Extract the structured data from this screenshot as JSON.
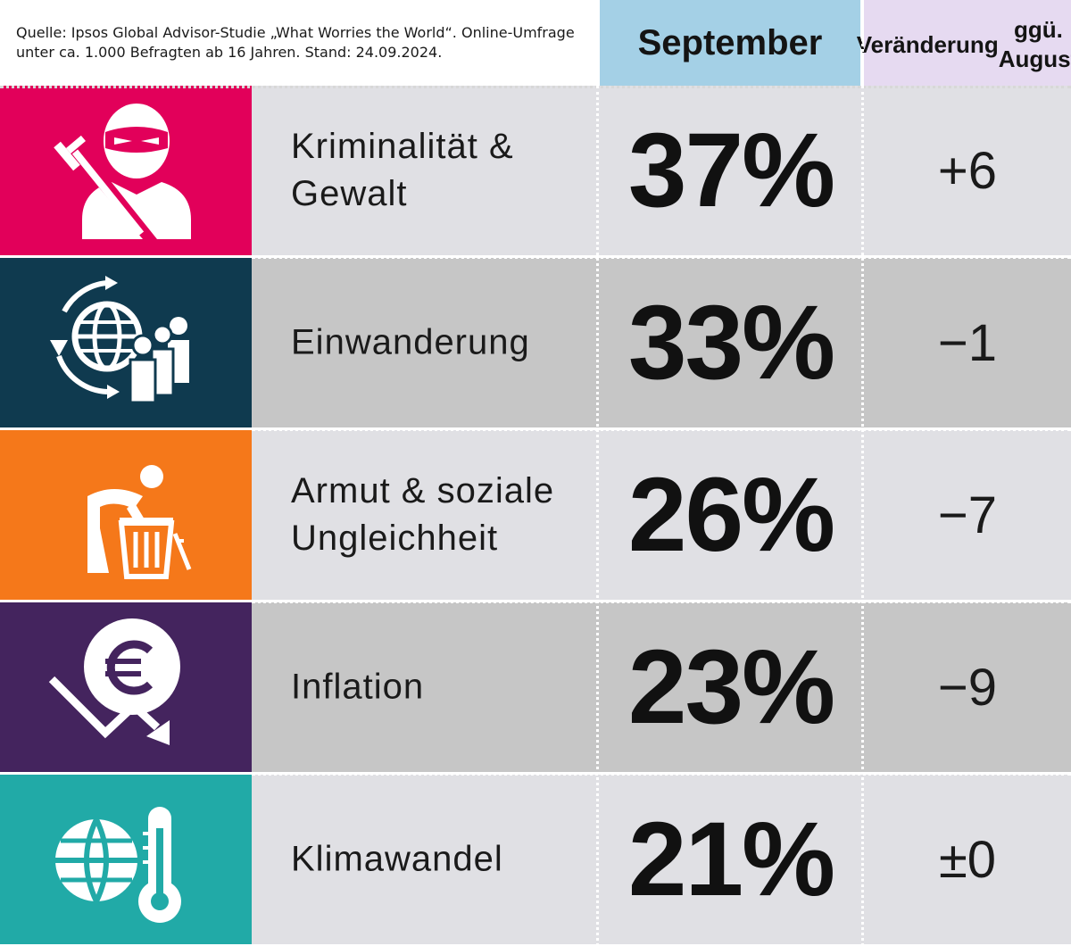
{
  "source": "Quelle: Ipsos Global Advisor-Studie „What Worries the World“. Online-Umfrage unter ca. 1.000 Befragten ab 16 Jahren. Stand: 24.09.2024.",
  "headers": {
    "september": "September",
    "change_line1": "Veränderung",
    "change_line2": "ggü. August"
  },
  "colors": {
    "header_september_bg": "#a4d0e6",
    "header_change_bg": "#e6daf1",
    "row_light": "#e0e0e4",
    "row_dark": "#c6c6c6"
  },
  "rows": [
    {
      "label": "Kriminalität &\nGewalt",
      "value": "37%",
      "change": "+6",
      "icon": "masked-criminal-icon",
      "color": "#e2005a"
    },
    {
      "label": "Einwanderung",
      "value": "33%",
      "change": "−1",
      "icon": "globe-migration-icon",
      "color": "#0f3a4f"
    },
    {
      "label": "Armut & soziale\nUngleichheit",
      "value": "26%",
      "change": "−7",
      "icon": "poverty-trash-icon",
      "color": "#f5781a"
    },
    {
      "label": "Inflation",
      "value": "23%",
      "change": "−9",
      "icon": "euro-decline-icon",
      "color": "#44245e"
    },
    {
      "label": "Klimawandel",
      "value": "21%",
      "change": "±0",
      "icon": "globe-thermometer-icon",
      "color": "#21aaa7"
    }
  ],
  "chart_data": {
    "type": "table",
    "columns": [
      "September",
      "Veränderung ggü. August"
    ],
    "categories": [
      "Kriminalität & Gewalt",
      "Einwanderung",
      "Armut & soziale Ungleichheit",
      "Inflation",
      "Klimawandel"
    ],
    "series": [
      {
        "name": "September",
        "values": [
          37,
          33,
          26,
          23,
          21
        ]
      },
      {
        "name": "Veränderung ggü. August",
        "values": [
          6,
          -1,
          -7,
          -9,
          0
        ]
      }
    ]
  }
}
